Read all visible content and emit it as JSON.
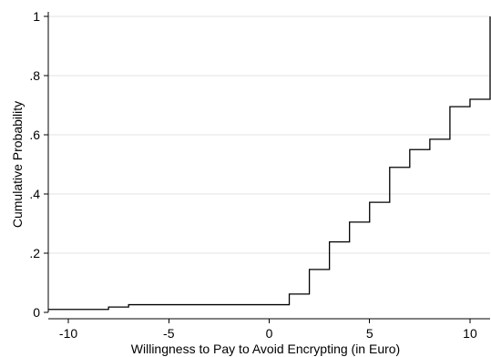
{
  "chart_data": {
    "type": "line",
    "step": "post",
    "title": "",
    "xlabel": "Willingness to Pay to Avoid Encrypting (in Euro)",
    "ylabel": "Cumulative Probability",
    "xlim": [
      -11,
      11
    ],
    "ylim": [
      0,
      1
    ],
    "xticks": [
      -10,
      -5,
      0,
      5,
      10
    ],
    "xtick_labels": [
      "-10",
      "-5",
      "0",
      "5",
      "10"
    ],
    "yticks": [
      0,
      0.2,
      0.4,
      0.6,
      0.8,
      1
    ],
    "ytick_labels": [
      "0",
      ".2",
      ".4",
      ".6",
      ".8",
      "1"
    ],
    "grid": true,
    "legend": "none",
    "series": [
      {
        "color": "#000000",
        "x": [
          -11,
          -8,
          -7,
          1,
          2,
          3,
          4,
          5,
          6,
          7,
          8,
          9,
          10,
          11
        ],
        "y": [
          0.01,
          0.018,
          0.026,
          0.062,
          0.145,
          0.238,
          0.305,
          0.372,
          0.49,
          0.55,
          0.585,
          0.695,
          0.72,
          1.0
        ]
      }
    ]
  }
}
